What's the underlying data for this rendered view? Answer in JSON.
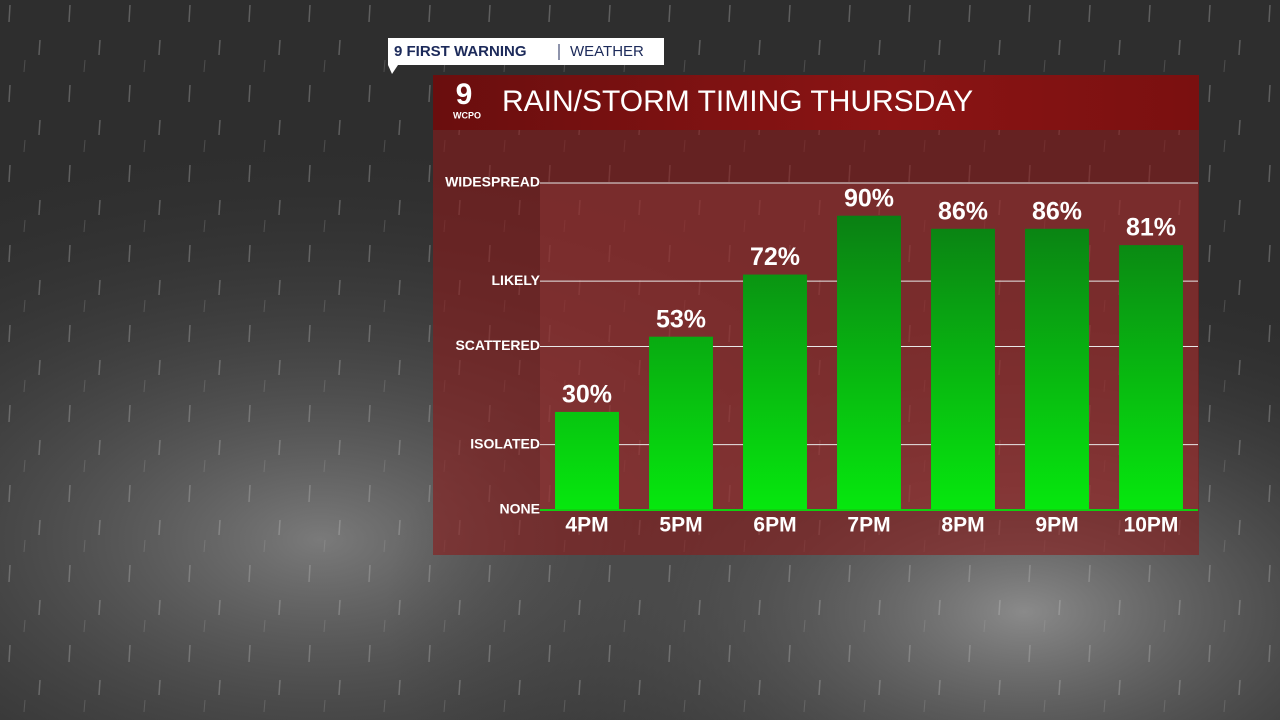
{
  "header": {
    "brand": "9 FIRST WARNING",
    "section": "WEATHER",
    "logo": "9",
    "logo_sub": "WCPO"
  },
  "chart_data": {
    "type": "bar",
    "title": "RAIN/STORM TIMING THURSDAY",
    "categories": [
      "4PM",
      "5PM",
      "6PM",
      "7PM",
      "8PM",
      "9PM",
      "10PM"
    ],
    "values": [
      30,
      53,
      72,
      90,
      86,
      86,
      81
    ],
    "value_labels": [
      "30%",
      "53%",
      "72%",
      "90%",
      "86%",
      "86%",
      "81%"
    ],
    "gradient": [
      "#0b7414",
      "#06e80e"
    ],
    "ylim": [
      0,
      100
    ],
    "yticks": [
      {
        "value": 0,
        "label": "NONE"
      },
      {
        "value": 20,
        "label": "ISOLATED"
      },
      {
        "value": 50,
        "label": "SCATTERED"
      },
      {
        "value": 70,
        "label": "LIKELY"
      },
      {
        "value": 100,
        "label": "WIDESPREAD"
      }
    ],
    "grid": true
  }
}
